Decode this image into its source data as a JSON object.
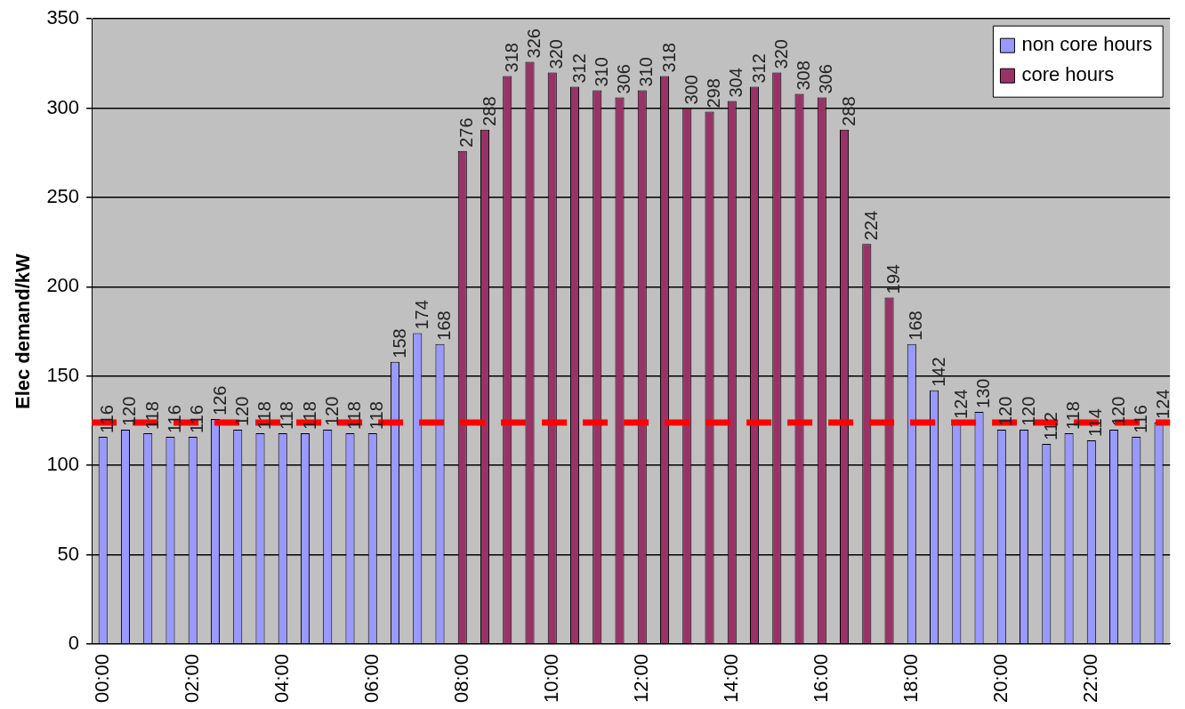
{
  "chart_data": {
    "type": "bar",
    "ylabel": "Elec demand/kW",
    "categories": [
      "00:00",
      null,
      null,
      null,
      "02:00",
      null,
      null,
      null,
      "04:00",
      null,
      null,
      null,
      "06:00",
      null,
      null,
      null,
      "08:00",
      null,
      null,
      null,
      "10:00",
      null,
      null,
      null,
      "12:00",
      null,
      null,
      null,
      "14:00",
      null,
      null,
      null,
      "16:00",
      null,
      null,
      null,
      "18:00",
      null,
      null,
      null,
      "20:00",
      null,
      null,
      null,
      "22:00",
      null,
      null,
      null
    ],
    "series": [
      {
        "name": "non core hours",
        "color": "#9999ff",
        "values": [
          116,
          120,
          118,
          116,
          116,
          126,
          120,
          118,
          118,
          118,
          120,
          118,
          118,
          158,
          174,
          168,
          null,
          null,
          null,
          null,
          null,
          null,
          null,
          null,
          null,
          null,
          null,
          null,
          null,
          null,
          null,
          null,
          null,
          null,
          null,
          null,
          168,
          142,
          124,
          130,
          120,
          120,
          112,
          118,
          114,
          120,
          116,
          124
        ]
      },
      {
        "name": "core hours",
        "color": "#993366",
        "values": [
          null,
          null,
          null,
          null,
          null,
          null,
          null,
          null,
          null,
          null,
          null,
          null,
          null,
          null,
          null,
          null,
          276,
          288,
          318,
          326,
          320,
          312,
          310,
          306,
          310,
          318,
          300,
          298,
          304,
          312,
          320,
          308,
          306,
          288,
          224,
          194,
          null,
          null,
          null,
          null,
          null,
          null,
          null,
          null,
          null,
          null,
          null,
          null
        ]
      }
    ],
    "ylim": [
      0,
      350
    ],
    "yticks": [
      0,
      50,
      100,
      150,
      200,
      250,
      300,
      350
    ],
    "grid": "y",
    "legend": "top right",
    "data_labels": true,
    "ref_lines": [
      {
        "axis": "y",
        "value": 124,
        "color": "#ff0000",
        "line_style": "dashed"
      }
    ]
  }
}
